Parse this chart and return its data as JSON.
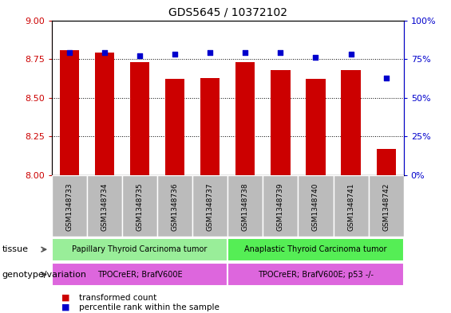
{
  "title": "GDS5645 / 10372102",
  "samples": [
    "GSM1348733",
    "GSM1348734",
    "GSM1348735",
    "GSM1348736",
    "GSM1348737",
    "GSM1348738",
    "GSM1348739",
    "GSM1348740",
    "GSM1348741",
    "GSM1348742"
  ],
  "transformed_count": [
    8.81,
    8.79,
    8.73,
    8.62,
    8.63,
    8.73,
    8.68,
    8.62,
    8.68,
    8.17
  ],
  "percentile_rank": [
    79,
    79,
    77,
    78,
    79,
    79,
    79,
    76,
    78,
    63
  ],
  "ylim_left": [
    8.0,
    9.0
  ],
  "ylim_right": [
    0,
    100
  ],
  "yticks_left": [
    8.0,
    8.25,
    8.5,
    8.75,
    9.0
  ],
  "yticks_right": [
    0,
    25,
    50,
    75,
    100
  ],
  "ytick_labels_right": [
    "0%",
    "25%",
    "50%",
    "75%",
    "100%"
  ],
  "bar_color": "#cc0000",
  "dot_color": "#0000cc",
  "tissue_groups": [
    {
      "label": "Papillary Thyroid Carcinoma tumor",
      "samples_idx": [
        0,
        1,
        2,
        3,
        4
      ],
      "color": "#99ee99"
    },
    {
      "label": "Anaplastic Thyroid Carcinoma tumor",
      "samples_idx": [
        5,
        6,
        7,
        8,
        9
      ],
      "color": "#55ee55"
    }
  ],
  "genotype_groups": [
    {
      "label": "TPOCreER; BrafV600E",
      "samples_idx": [
        0,
        1,
        2,
        3,
        4
      ],
      "color": "#dd66dd"
    },
    {
      "label": "TPOCreER; BrafV600E; p53 -/-",
      "samples_idx": [
        5,
        6,
        7,
        8,
        9
      ],
      "color": "#dd66dd"
    }
  ],
  "tissue_label": "tissue",
  "genotype_label": "genotype/variation",
  "legend_items": [
    {
      "label": "transformed count",
      "color": "#cc0000"
    },
    {
      "label": "percentile rank within the sample",
      "color": "#0000cc"
    }
  ],
  "tick_color_left": "#cc0000",
  "tick_color_right": "#0000cc",
  "xtick_bg_color": "#bbbbbb",
  "plot_bg_color": "#ffffff"
}
